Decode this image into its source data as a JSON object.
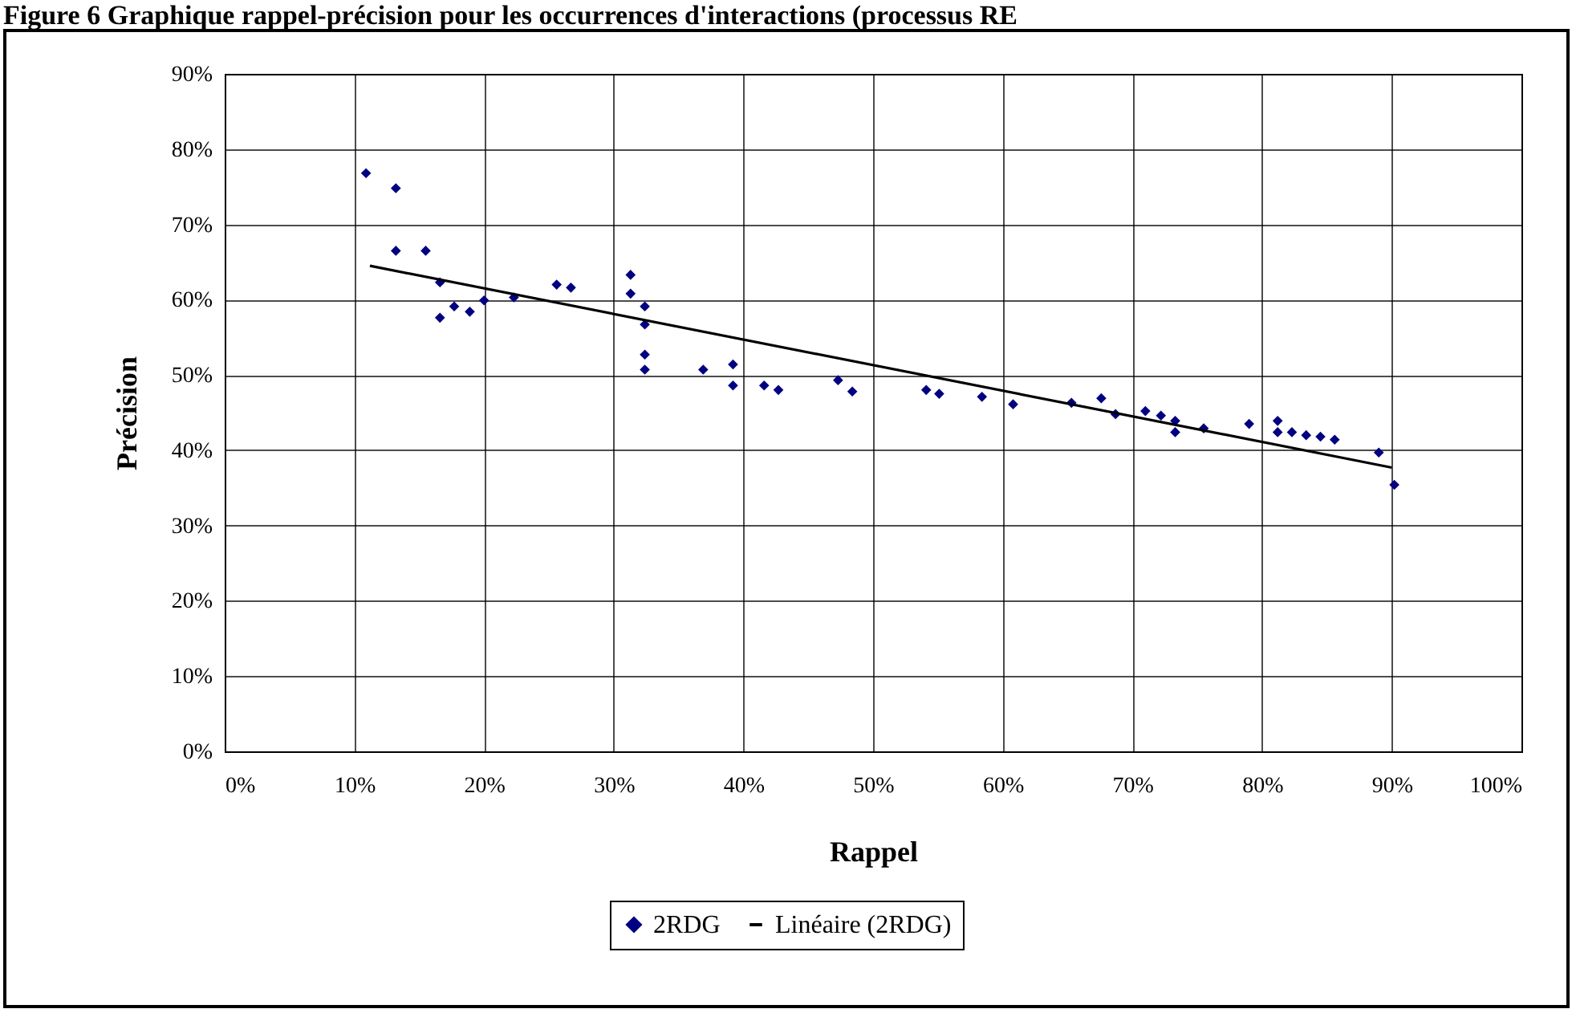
{
  "chart_data": {
    "type": "scatter",
    "title": "Figure 6 Graphique rappel-précision pour les occurrences d'interactions (processus RE",
    "xlabel": "Rappel",
    "ylabel": "Précision",
    "xlim": [
      0,
      100
    ],
    "ylim": [
      0,
      90
    ],
    "xticks": [
      {
        "value": 0,
        "label": "0%"
      },
      {
        "value": 10,
        "label": "10%"
      },
      {
        "value": 20,
        "label": "20%"
      },
      {
        "value": 30,
        "label": "30%"
      },
      {
        "value": 40,
        "label": "40%"
      },
      {
        "value": 50,
        "label": "50%"
      },
      {
        "value": 60,
        "label": "60%"
      },
      {
        "value": 70,
        "label": "70%"
      },
      {
        "value": 80,
        "label": "80%"
      },
      {
        "value": 90,
        "label": "90%"
      },
      {
        "value": 100,
        "label": "100%"
      }
    ],
    "yticks": [
      {
        "value": 0,
        "label": "0%"
      },
      {
        "value": 10,
        "label": "10%"
      },
      {
        "value": 20,
        "label": "20%"
      },
      {
        "value": 30,
        "label": "30%"
      },
      {
        "value": 40,
        "label": "40%"
      },
      {
        "value": 50,
        "label": "50%"
      },
      {
        "value": 60,
        "label": "60%"
      },
      {
        "value": 70,
        "label": "70%"
      },
      {
        "value": 80,
        "label": "80%"
      },
      {
        "value": 90,
        "label": "90%"
      }
    ],
    "grid": true,
    "legend": "bottom",
    "line_style": "solid",
    "series": [
      {
        "name": "2RDG",
        "color": "#000080",
        "marker": "diamond",
        "x": [
          10.9,
          13.2,
          13.2,
          15.5,
          16.6,
          17.7,
          16.6,
          18.9,
          20.0,
          22.3,
          25.6,
          26.7,
          31.3,
          31.3,
          32.4,
          32.4,
          32.4,
          32.4,
          36.9,
          39.2,
          39.2,
          41.6,
          42.7,
          47.3,
          48.4,
          54.1,
          55.1,
          58.4,
          60.8,
          65.3,
          67.6,
          68.7,
          71.0,
          72.2,
          73.3,
          73.3,
          75.5,
          79.0,
          81.2,
          81.2,
          82.3,
          83.4,
          84.5,
          85.6,
          89.0,
          90.2
        ],
        "values": [
          76.8,
          74.8,
          66.5,
          66.5,
          62.3,
          59.1,
          57.6,
          58.4,
          59.9,
          60.3,
          62.0,
          61.6,
          63.3,
          60.8,
          59.1,
          56.7,
          52.7,
          50.7,
          50.7,
          51.4,
          48.6,
          48.6,
          48.0,
          49.3,
          47.8,
          48.0,
          47.5,
          47.1,
          46.1,
          46.3,
          46.9,
          44.8,
          45.2,
          44.6,
          43.9,
          42.4,
          42.9,
          43.5,
          43.9,
          42.4,
          42.4,
          42.0,
          41.8,
          41.4,
          39.7,
          35.4
        ]
      },
      {
        "name": "Linéaire (2RDG)",
        "type": "line",
        "color": "#000000",
        "x": [
          11.2,
          90.0
        ],
        "values": [
          64.5,
          37.7
        ]
      }
    ]
  }
}
